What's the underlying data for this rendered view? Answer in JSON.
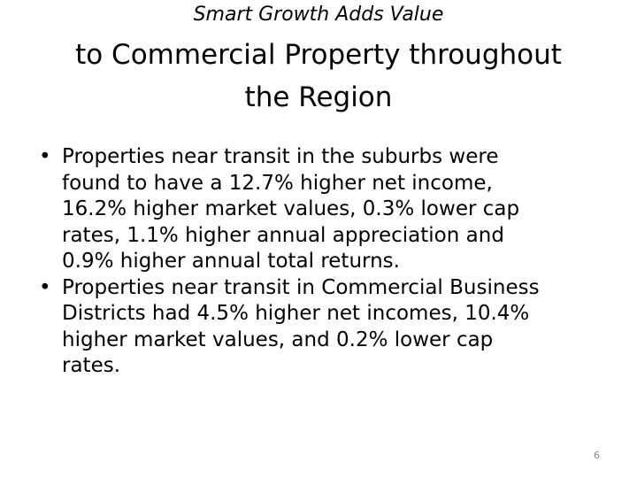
{
  "header": {
    "subtitle": "Smart Growth Adds Value",
    "title_lines": [
      "to Commercial Property throughout",
      "the Region"
    ]
  },
  "bullets": [
    [
      "Properties near transit in the suburbs were",
      "found to have a 12.7% higher net income,",
      "16.2% higher market values, 0.3% lower cap",
      "rates, 1.1% higher annual appreciation and",
      "0.9% higher annual total returns."
    ],
    [
      "Properties near transit in Commercial Business",
      "Districts had 4.5% higher net incomes, 10.4%",
      "higher market values, and 0.2% lower cap",
      "rates."
    ]
  ],
  "page_number": "6"
}
